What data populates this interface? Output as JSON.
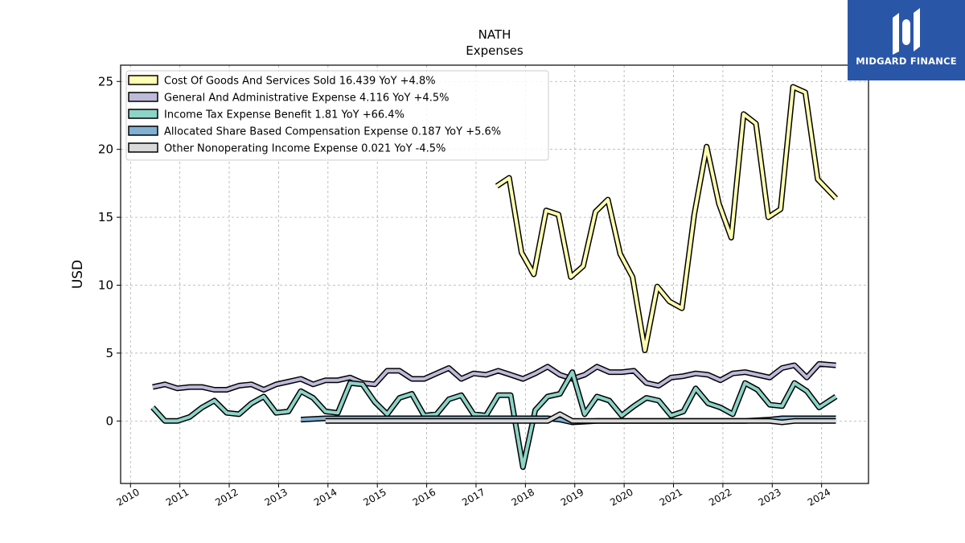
{
  "brand": {
    "name": "MIDGARD FINANCE",
    "bg_color": "#2a56a8",
    "icon": "midgard-logo-icon"
  },
  "chart_data": {
    "type": "line",
    "title": "NATH",
    "subtitle": "Expenses",
    "ylabel": "USD",
    "xlabel": "",
    "xlim": [
      2009.8,
      2024.95
    ],
    "ylim": [
      -4.6,
      26.2
    ],
    "x_ticks": [
      "2010",
      "2011",
      "2012",
      "2013",
      "2014",
      "2015",
      "2016",
      "2017",
      "2018",
      "2019",
      "2020",
      "2021",
      "2022",
      "2023",
      "2024"
    ],
    "y_ticks": [
      "0",
      "5",
      "10",
      "15",
      "20",
      "25"
    ],
    "grid": true,
    "legend_position": "top-left",
    "series": [
      {
        "name": "Cost Of Goods And Services Sold  16.439 YoY +4.8%",
        "color": "#ffffb3",
        "x": [
          2017.42,
          2017.67,
          2017.92,
          2018.17,
          2018.42,
          2018.67,
          2018.92,
          2019.17,
          2019.42,
          2019.67,
          2019.92,
          2020.17,
          2020.42,
          2020.67,
          2020.92,
          2021.17,
          2021.42,
          2021.67,
          2021.92,
          2022.17,
          2022.42,
          2022.67,
          2022.92,
          2023.17,
          2023.42,
          2023.67,
          2023.92,
          2024.29
        ],
        "y": [
          17.3,
          17.9,
          12.4,
          10.8,
          15.5,
          15.2,
          10.6,
          11.4,
          15.4,
          16.3,
          12.3,
          10.6,
          5.2,
          9.9,
          8.8,
          8.3,
          15.2,
          20.2,
          16.0,
          13.5,
          22.6,
          21.9,
          15.0,
          15.6,
          24.6,
          24.2,
          17.8,
          16.4
        ]
      },
      {
        "name": "General And Administrative Expense  4.116 YoY +4.5%",
        "color": "#bebada",
        "x": [
          2010.45,
          2010.7,
          2010.95,
          2011.2,
          2011.45,
          2011.7,
          2011.95,
          2012.2,
          2012.45,
          2012.7,
          2012.95,
          2013.2,
          2013.45,
          2013.7,
          2013.95,
          2014.2,
          2014.45,
          2014.7,
          2014.95,
          2015.2,
          2015.45,
          2015.7,
          2015.95,
          2016.2,
          2016.45,
          2016.7,
          2016.95,
          2017.2,
          2017.45,
          2017.7,
          2017.95,
          2018.2,
          2018.45,
          2018.7,
          2018.95,
          2019.2,
          2019.45,
          2019.7,
          2019.95,
          2020.2,
          2020.45,
          2020.7,
          2020.95,
          2021.2,
          2021.45,
          2021.7,
          2021.95,
          2022.2,
          2022.45,
          2022.7,
          2022.95,
          2023.2,
          2023.45,
          2023.7,
          2023.95,
          2024.29
        ],
        "y": [
          2.5,
          2.7,
          2.4,
          2.5,
          2.5,
          2.3,
          2.3,
          2.6,
          2.7,
          2.3,
          2.7,
          2.9,
          3.1,
          2.7,
          3.0,
          3.0,
          3.2,
          2.8,
          2.7,
          3.7,
          3.7,
          3.1,
          3.1,
          3.5,
          3.9,
          3.1,
          3.5,
          3.4,
          3.7,
          3.4,
          3.1,
          3.5,
          4.0,
          3.4,
          3.1,
          3.4,
          4.0,
          3.6,
          3.6,
          3.7,
          2.8,
          2.6,
          3.2,
          3.3,
          3.5,
          3.4,
          3.0,
          3.5,
          3.6,
          3.4,
          3.2,
          3.9,
          4.1,
          3.2,
          4.2,
          4.1
        ]
      },
      {
        "name": "Income Tax Expense Benefit  1.81 YoY +66.4%",
        "color": "#8dd3c7",
        "x": [
          2010.45,
          2010.7,
          2010.95,
          2011.2,
          2011.45,
          2011.7,
          2011.95,
          2012.2,
          2012.45,
          2012.7,
          2012.95,
          2013.2,
          2013.45,
          2013.7,
          2013.95,
          2014.2,
          2014.45,
          2014.7,
          2014.95,
          2015.2,
          2015.45,
          2015.7,
          2015.95,
          2016.2,
          2016.45,
          2016.7,
          2016.95,
          2017.2,
          2017.45,
          2017.7,
          2017.95,
          2018.2,
          2018.45,
          2018.7,
          2018.95,
          2019.2,
          2019.45,
          2019.7,
          2019.95,
          2020.2,
          2020.45,
          2020.7,
          2020.95,
          2021.2,
          2021.45,
          2021.7,
          2021.95,
          2022.2,
          2022.45,
          2022.7,
          2022.95,
          2023.2,
          2023.45,
          2023.7,
          2023.95,
          2024.29
        ],
        "y": [
          1.0,
          0.0,
          0.0,
          0.3,
          1.0,
          1.5,
          0.6,
          0.5,
          1.3,
          1.8,
          0.6,
          0.7,
          2.2,
          1.7,
          0.7,
          0.6,
          2.8,
          2.7,
          1.4,
          0.5,
          1.7,
          2.0,
          0.4,
          0.5,
          1.6,
          1.9,
          0.5,
          0.4,
          1.9,
          1.9,
          -3.4,
          0.8,
          1.8,
          2.0,
          3.6,
          0.5,
          1.8,
          1.5,
          0.4,
          1.1,
          1.7,
          1.5,
          0.4,
          0.7,
          2.4,
          1.3,
          1.0,
          0.5,
          2.8,
          2.3,
          1.2,
          1.1,
          2.8,
          2.2,
          1.0,
          1.8
        ]
      },
      {
        "name": "Allocated Share Based Compensation Expense  0.187 YoY +5.6%",
        "color": "#80b1d3",
        "x": [
          2013.45,
          2013.95,
          2014.45,
          2014.95,
          2015.45,
          2015.95,
          2016.45,
          2016.95,
          2017.45,
          2017.95,
          2018.45,
          2018.7,
          2018.95,
          2019.45,
          2019.95,
          2020.45,
          2020.95,
          2021.45,
          2021.95,
          2022.45,
          2022.95,
          2023.2,
          2023.45,
          2023.95,
          2024.29
        ],
        "y": [
          0.1,
          0.2,
          0.2,
          0.2,
          0.2,
          0.2,
          0.2,
          0.2,
          0.2,
          0.2,
          0.2,
          0.1,
          -0.1,
          0.0,
          0.0,
          0.0,
          0.0,
          0.0,
          0.0,
          0.0,
          0.1,
          0.2,
          0.2,
          0.2,
          0.2
        ]
      },
      {
        "name": "Other Nonoperating Income Expense  0.021 YoY -4.5%",
        "color": "#d9d9d9",
        "x": [
          2013.95,
          2014.45,
          2014.95,
          2015.45,
          2015.95,
          2016.45,
          2016.95,
          2017.45,
          2017.95,
          2018.45,
          2018.7,
          2018.95,
          2019.45,
          2019.95,
          2020.45,
          2020.95,
          2021.45,
          2021.95,
          2022.45,
          2022.95,
          2023.2,
          2023.45,
          2023.95,
          2024.29
        ],
        "y": [
          0.0,
          0.0,
          0.0,
          0.0,
          0.0,
          0.0,
          0.0,
          0.0,
          0.0,
          0.0,
          0.5,
          0.0,
          0.0,
          0.0,
          0.0,
          0.0,
          0.0,
          0.0,
          0.0,
          0.0,
          -0.1,
          0.0,
          0.0,
          0.0
        ]
      }
    ]
  }
}
